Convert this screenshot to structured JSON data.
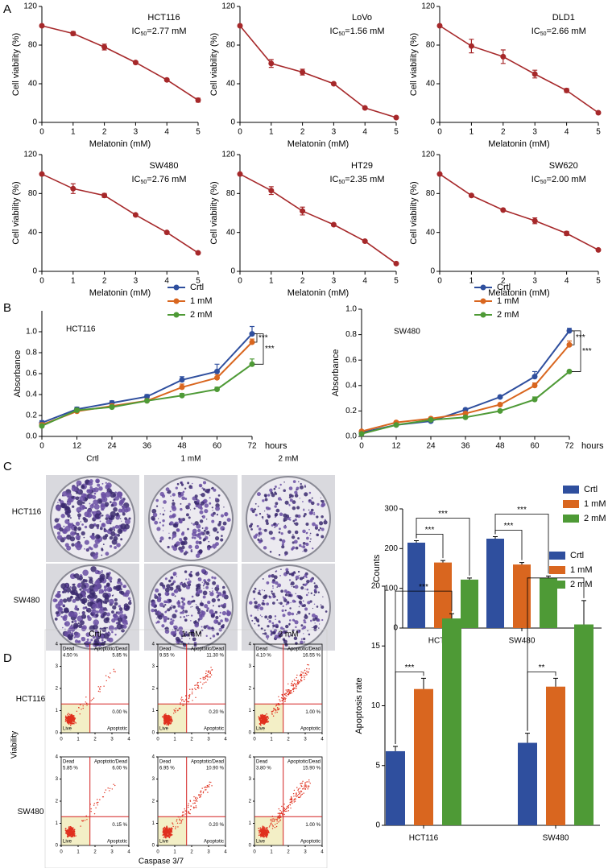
{
  "panels": [
    "A",
    "B",
    "C",
    "D"
  ],
  "chart_data": [
    {
      "type": "line",
      "annotation": {
        "label": "HCT116",
        "ic50": [
          "IC",
          "50",
          "=2.77 mM"
        ]
      },
      "xlabel": "Melatonin (mM)",
      "ylabel": "Cell viability (%)",
      "x": [
        0,
        1,
        2,
        3,
        4,
        5
      ],
      "series": [
        {
          "color": "#a6282a",
          "values": [
            100,
            92,
            78,
            62,
            44,
            23
          ],
          "errors": [
            1,
            2,
            3,
            1,
            1,
            2
          ]
        }
      ],
      "xlim": [
        0,
        5
      ],
      "xticks": [
        0,
        1,
        2,
        3,
        4,
        5
      ],
      "ylim": [
        0,
        120
      ],
      "yticks": [
        0,
        40,
        80,
        120
      ]
    },
    {
      "type": "line",
      "annotation": {
        "label": "LoVo",
        "ic50": [
          "IC",
          "50",
          "=1.56 mM"
        ]
      },
      "xlabel": "Melatonin (mM)",
      "ylabel": "Cell viability (%)",
      "x": [
        0,
        1,
        2,
        3,
        4,
        5
      ],
      "series": [
        {
          "color": "#a6282a",
          "values": [
            100,
            61,
            52,
            40,
            15,
            5
          ],
          "errors": [
            0,
            4,
            3,
            1,
            1,
            1
          ]
        }
      ],
      "xlim": [
        0,
        5
      ],
      "xticks": [
        0,
        1,
        2,
        3,
        4,
        5
      ],
      "ylim": [
        0,
        120
      ],
      "yticks": [
        0,
        40,
        80,
        120
      ]
    },
    {
      "type": "line",
      "annotation": {
        "label": "DLD1",
        "ic50": [
          "IC",
          "50",
          "=2.66 mM"
        ]
      },
      "xlabel": "Melatonin (mM)",
      "ylabel": "Cell viability (%)",
      "x": [
        0,
        1,
        2,
        3,
        4,
        5
      ],
      "series": [
        {
          "color": "#a6282a",
          "values": [
            100,
            79,
            68,
            50,
            33,
            10
          ],
          "errors": [
            0,
            7,
            7,
            4,
            2,
            1
          ]
        }
      ],
      "xlim": [
        0,
        5
      ],
      "xticks": [
        0,
        1,
        2,
        3,
        4,
        5
      ],
      "ylim": [
        0,
        120
      ],
      "yticks": [
        0,
        40,
        80,
        120
      ]
    },
    {
      "type": "line",
      "annotation": {
        "label": "SW480",
        "ic50": [
          "IC",
          "50",
          "=2.76 mM"
        ]
      },
      "xlabel": "Melatonin (mM)",
      "ylabel": "Cell viability (%)",
      "x": [
        0,
        1,
        2,
        3,
        4,
        5
      ],
      "series": [
        {
          "color": "#a6282a",
          "values": [
            100,
            85,
            78,
            58,
            40,
            19
          ],
          "errors": [
            0,
            5,
            2,
            1,
            1,
            1
          ]
        }
      ],
      "xlim": [
        0,
        5
      ],
      "xticks": [
        0,
        1,
        2,
        3,
        4,
        5
      ],
      "ylim": [
        0,
        120
      ],
      "yticks": [
        0,
        40,
        80,
        120
      ]
    },
    {
      "type": "line",
      "annotation": {
        "label": "HT29",
        "ic50": [
          "IC",
          "50",
          "=2.35 mM"
        ]
      },
      "xlabel": "Melatonin (mM)",
      "ylabel": "Cell viability (%)",
      "x": [
        0,
        1,
        2,
        3,
        4,
        5
      ],
      "series": [
        {
          "color": "#a6282a",
          "values": [
            100,
            83,
            62,
            48,
            31,
            8
          ],
          "errors": [
            0,
            4,
            4,
            1,
            1,
            1
          ]
        }
      ],
      "xlim": [
        0,
        5
      ],
      "xticks": [
        0,
        1,
        2,
        3,
        4,
        5
      ],
      "ylim": [
        0,
        120
      ],
      "yticks": [
        0,
        40,
        80,
        120
      ]
    },
    {
      "type": "line",
      "annotation": {
        "label": "SW620",
        "ic50": [
          "IC",
          "50",
          "=2.00 mM"
        ]
      },
      "xlabel": "Melatonin (mM)",
      "ylabel": "Cell viability (%)",
      "x": [
        0,
        1,
        2,
        3,
        4,
        5
      ],
      "series": [
        {
          "color": "#a6282a",
          "values": [
            100,
            78,
            63,
            52,
            39,
            22
          ],
          "errors": [
            0,
            1,
            1,
            3,
            2,
            1
          ]
        }
      ],
      "xlim": [
        0,
        5
      ],
      "xticks": [
        0,
        1,
        2,
        3,
        4,
        5
      ],
      "ylim": [
        0,
        120
      ],
      "yticks": [
        0,
        40,
        80,
        120
      ]
    },
    {
      "type": "line",
      "title": "HCT116",
      "xlabel": "hours",
      "ylabel": "Absorbance",
      "x": [
        0,
        12,
        24,
        36,
        48,
        60,
        72
      ],
      "series": [
        {
          "name": "Crtl",
          "color": "#2f4f9e",
          "values": [
            0.13,
            0.26,
            0.32,
            0.38,
            0.54,
            0.62,
            0.98
          ],
          "errors": [
            0.02,
            0.02,
            0.02,
            0.02,
            0.03,
            0.07,
            0.07
          ]
        },
        {
          "name": "1 mM",
          "color": "#d9661f",
          "values": [
            0.11,
            0.24,
            0.29,
            0.34,
            0.47,
            0.56,
            0.9
          ],
          "errors": [
            0.02,
            0.02,
            0.02,
            0.02,
            0.03,
            0.03,
            0.03
          ]
        },
        {
          "name": "2 mM",
          "color": "#4e9a36",
          "values": [
            0.1,
            0.25,
            0.28,
            0.34,
            0.39,
            0.45,
            0.69
          ],
          "errors": [
            0.01,
            0.02,
            0.02,
            0.01,
            0.02,
            0.02,
            0.05
          ]
        }
      ],
      "significance": [
        "***",
        "***"
      ],
      "xlim": [
        0,
        72
      ],
      "xticks": [
        0,
        12,
        24,
        36,
        48,
        60,
        72
      ],
      "ylim": [
        0,
        1.2
      ],
      "yticks": [
        {
          "value": 0,
          "label": "0.0"
        },
        0.2,
        0.4,
        0.6,
        0.8,
        {
          "value": 1,
          "label": "1.0"
        }
      ]
    },
    {
      "type": "line",
      "title": "SW480",
      "xlabel": "hours",
      "ylabel": "Absorbance",
      "x": [
        0,
        12,
        24,
        36,
        48,
        60,
        72
      ],
      "series": [
        {
          "name": "Crtl",
          "color": "#2f4f9e",
          "values": [
            0.03,
            0.09,
            0.12,
            0.21,
            0.31,
            0.47,
            0.83
          ],
          "errors": [
            0.01,
            0.01,
            0.01,
            0.01,
            0.01,
            0.04,
            0.02
          ]
        },
        {
          "name": "1 mM",
          "color": "#d9661f",
          "values": [
            0.04,
            0.11,
            0.14,
            0.18,
            0.25,
            0.4,
            0.72
          ],
          "errors": [
            0.01,
            0.01,
            0.01,
            0.01,
            0.01,
            0.02,
            0.03
          ]
        },
        {
          "name": "2 mM",
          "color": "#4e9a36",
          "values": [
            0.02,
            0.09,
            0.13,
            0.15,
            0.2,
            0.29,
            0.51
          ],
          "errors": [
            0.01,
            0.01,
            0.01,
            0.01,
            0.01,
            0.02,
            0.01
          ]
        }
      ],
      "significance": [
        "***",
        "***"
      ],
      "xlim": [
        0,
        72
      ],
      "xticks": [
        0,
        12,
        24,
        36,
        48,
        60,
        72
      ],
      "ylim": [
        0,
        1
      ],
      "yticks": [
        {
          "value": 0,
          "label": "0.0"
        },
        0.2,
        0.4,
        0.6,
        0.8,
        {
          "value": 1,
          "label": "1.0"
        }
      ]
    },
    {
      "type": "bar",
      "ylabel": "Counts",
      "categories": [
        "HCT116",
        "SW480"
      ],
      "series": [
        {
          "name": "Crtl",
          "color": "#2f4f9e",
          "values": [
            215,
            225
          ],
          "errors": [
            5,
            5
          ]
        },
        {
          "name": "1 mM",
          "color": "#d9661f",
          "values": [
            165,
            160
          ],
          "errors": [
            5,
            5
          ]
        },
        {
          "name": "2 mM",
          "color": "#4e9a36",
          "values": [
            122,
            126
          ],
          "errors": [
            4,
            5
          ]
        }
      ],
      "significance": [
        [
          "***",
          "***"
        ],
        [
          "***",
          "***"
        ]
      ],
      "ylim": [
        0,
        300
      ],
      "yticks": [
        0,
        100,
        200,
        300
      ]
    },
    {
      "type": "bar",
      "ylabel": "Apoptosis rate",
      "categories": [
        "HCT116",
        "SW480"
      ],
      "series": [
        {
          "name": "Crtl",
          "color": "#2f4f9e",
          "values": [
            6.2,
            6.9
          ],
          "errors": [
            0.4,
            0.8
          ]
        },
        {
          "name": "1 mM",
          "color": "#d9661f",
          "values": [
            11.4,
            11.6
          ],
          "errors": [
            0.9,
            0.7
          ]
        },
        {
          "name": "2 mM",
          "color": "#4e9a36",
          "values": [
            17.3,
            16.8
          ],
          "errors": [
            0.4,
            2
          ]
        }
      ],
      "significance": [
        [
          "***",
          "***"
        ],
        [
          "**",
          "***"
        ]
      ],
      "ylim": [
        0,
        20
      ],
      "yticks": [
        0,
        5,
        10,
        15,
        20
      ]
    }
  ],
  "colonies": {
    "columns": [
      "Crtl",
      "1 mM",
      "2 mM"
    ],
    "rows": [
      "HCT116",
      "SW480"
    ]
  },
  "flow": {
    "columns": [
      "Crtl",
      "1 mM",
      "2 mM"
    ],
    "rows": [
      "HCT116",
      "SW480"
    ],
    "ylabel": "Viability",
    "xlabel": "Caspase 3/7",
    "xlim": [
      0,
      4
    ],
    "ylim": [
      0,
      4
    ],
    "xticks": [
      0,
      1,
      2,
      3,
      4
    ],
    "yticks": [
      0,
      1,
      2,
      3,
      4
    ],
    "gate": {
      "x": 1.7,
      "y": 1.3
    },
    "quadrants": {
      "dead": "Dead",
      "apoptotic_dead": "Apoptotic/Dead",
      "apoptotic": "Apoptotic",
      "live": "Live"
    },
    "plots": [
      [
        {
          "dead": "4.50 %",
          "apoptotic_dead": "5.85 %",
          "apoptotic": "0.00 %"
        },
        {
          "dead": "9.55 %",
          "apoptotic_dead": "11.30 %",
          "apoptotic": "0.20 %"
        },
        {
          "dead": "4.10 %",
          "apoptotic_dead": "16.55 %",
          "apoptotic": "1.00 %"
        }
      ],
      [
        {
          "dead": "5.85 %",
          "apoptotic_dead": "6.00 %",
          "apoptotic": "0.15 %"
        },
        {
          "dead": "6.95 %",
          "apoptotic_dead": "10.90 %",
          "apoptotic": "0.20 %"
        },
        {
          "dead": "3.80 %",
          "apoptotic_dead": "15.90 %",
          "apoptotic": "1.00 %"
        }
      ]
    ]
  }
}
